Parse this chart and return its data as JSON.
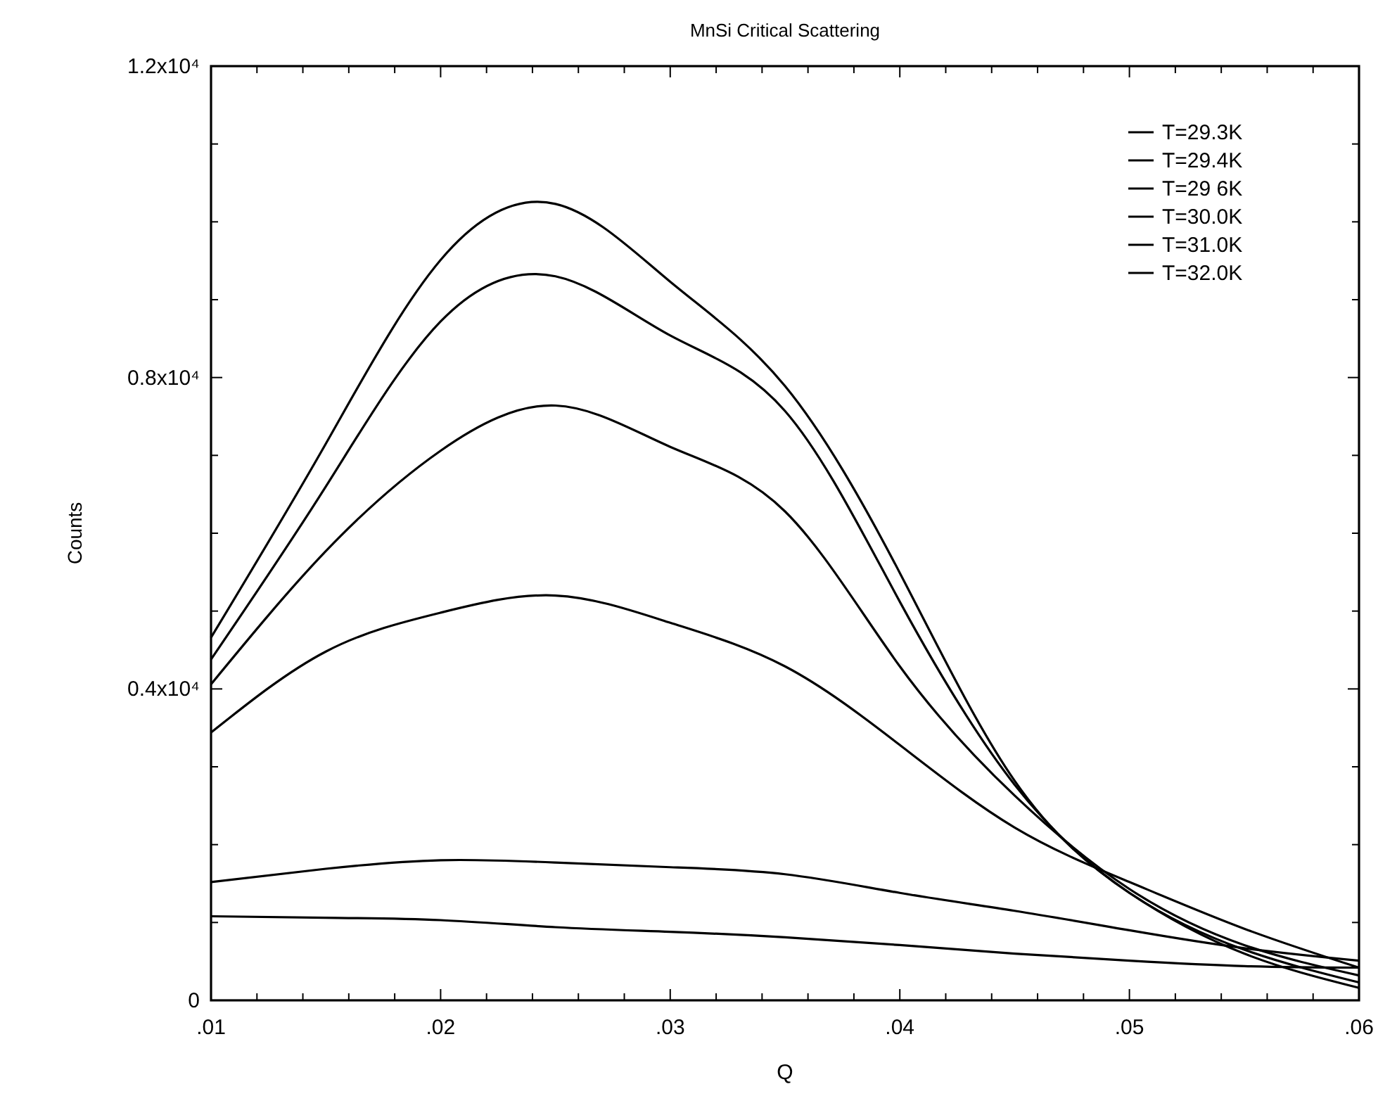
{
  "chart_data": {
    "type": "line",
    "title": "MnSi Critical Scattering",
    "xlabel": "Q",
    "ylabel": "Counts",
    "xlim": [
      0.01,
      0.06
    ],
    "ylim": [
      0,
      12000
    ],
    "xticks": [
      {
        "value": 0.01,
        "label": ".01"
      },
      {
        "value": 0.012,
        "label": null
      },
      {
        "value": 0.014,
        "label": null
      },
      {
        "value": 0.016,
        "label": null
      },
      {
        "value": 0.018,
        "label": null
      },
      {
        "value": 0.02,
        "label": ".02"
      },
      {
        "value": 0.022,
        "label": null
      },
      {
        "value": 0.024,
        "label": null
      },
      {
        "value": 0.026,
        "label": null
      },
      {
        "value": 0.028,
        "label": null
      },
      {
        "value": 0.03,
        "label": ".03"
      },
      {
        "value": 0.032,
        "label": null
      },
      {
        "value": 0.034,
        "label": null
      },
      {
        "value": 0.036,
        "label": null
      },
      {
        "value": 0.038,
        "label": null
      },
      {
        "value": 0.04,
        "label": ".04"
      },
      {
        "value": 0.042,
        "label": null
      },
      {
        "value": 0.044,
        "label": null
      },
      {
        "value": 0.046,
        "label": null
      },
      {
        "value": 0.048,
        "label": null
      },
      {
        "value": 0.05,
        "label": ".05"
      },
      {
        "value": 0.052,
        "label": null
      },
      {
        "value": 0.054,
        "label": null
      },
      {
        "value": 0.056,
        "label": null
      },
      {
        "value": 0.058,
        "label": null
      },
      {
        "value": 0.06,
        "label": ".06"
      }
    ],
    "yticks": [
      0,
      {
        "value": 1000,
        "label": null
      },
      {
        "value": 2000,
        "label": null
      },
      {
        "value": 3000,
        "label": null
      },
      {
        "value": 4000,
        "label": "0.4x10⁴"
      },
      {
        "value": 5000,
        "label": null
      },
      {
        "value": 6000,
        "label": null
      },
      {
        "value": 7000,
        "label": null
      },
      {
        "value": 8000,
        "label": "0.8x10⁴"
      },
      {
        "value": 9000,
        "label": null
      },
      {
        "value": 10000,
        "label": null
      },
      {
        "value": 11000,
        "label": null
      },
      {
        "value": 12000,
        "label": "1.2x10⁴"
      }
    ],
    "x": [
      0.01,
      0.015,
      0.02,
      0.025,
      0.03,
      0.035,
      0.04,
      0.045,
      0.05,
      0.055,
      0.06
    ],
    "legend": "top right",
    "series": [
      {
        "name": "T=29.3K",
        "color": "#000000",
        "values": [
          4660,
          7150,
          9510,
          10230,
          9230,
          7890,
          5490,
          2820,
          1380,
          600,
          160
        ]
      },
      {
        "name": "T=29.4K",
        "color": "#000000",
        "values": [
          4380,
          6600,
          8720,
          9300,
          8540,
          7570,
          5120,
          2770,
          1380,
          650,
          230
        ]
      },
      {
        "name": "T=29 6K",
        "color": "#000000",
        "values": [
          4060,
          5770,
          7060,
          7640,
          7110,
          6280,
          4290,
          2630,
          1430,
          710,
          320
        ]
      },
      {
        "name": "T=30.0K",
        "color": "#000000",
        "values": [
          3440,
          4480,
          4980,
          5200,
          4850,
          4290,
          3280,
          2220,
          1520,
          920,
          420
        ]
      },
      {
        "name": "T=31.0K",
        "color": "#000000",
        "values": [
          1520,
          1690,
          1800,
          1770,
          1710,
          1620,
          1380,
          1150,
          900,
          670,
          510
        ]
      },
      {
        "name": "T=32.0K",
        "color": "#000000",
        "values": [
          1080,
          1060,
          1030,
          940,
          880,
          810,
          710,
          600,
          510,
          440,
          420
        ]
      }
    ]
  }
}
